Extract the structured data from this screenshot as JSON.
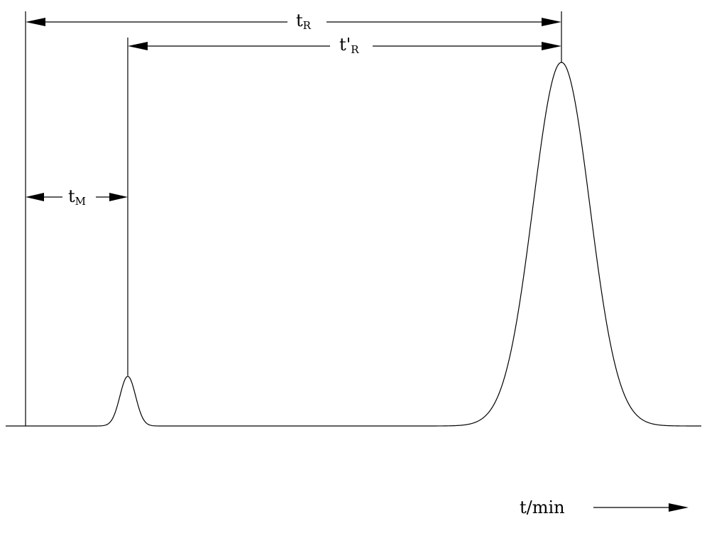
{
  "labels": {
    "retention_time": {
      "main": "t",
      "sub": "R"
    },
    "adjusted_retention_time": {
      "main": "t'",
      "sub": "R"
    },
    "dead_time": {
      "main": "t",
      "sub": "M"
    },
    "time_axis": "t/min"
  },
  "colors": {
    "ink": "#000000",
    "background": "#ffffff"
  }
}
